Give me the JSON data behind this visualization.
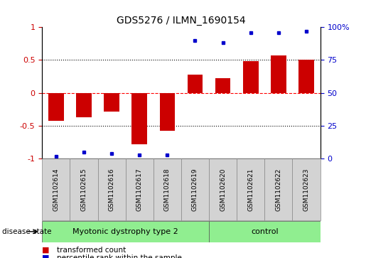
{
  "title": "GDS5276 / ILMN_1690154",
  "samples": [
    "GSM1102614",
    "GSM1102615",
    "GSM1102616",
    "GSM1102617",
    "GSM1102618",
    "GSM1102619",
    "GSM1102620",
    "GSM1102621",
    "GSM1102622",
    "GSM1102623"
  ],
  "transformed_count": [
    -0.42,
    -0.37,
    -0.28,
    -0.78,
    -0.58,
    0.28,
    0.22,
    0.48,
    0.57,
    0.5
  ],
  "percentile_rank": [
    2,
    5,
    4,
    3,
    3,
    90,
    88,
    96,
    96,
    97
  ],
  "bar_color": "#cc0000",
  "dot_color": "#0000cc",
  "ylim_left": [
    -1,
    1
  ],
  "ylim_right": [
    0,
    100
  ],
  "yticks_left": [
    -1,
    -0.5,
    0,
    0.5,
    1
  ],
  "yticks_right": [
    0,
    25,
    50,
    75,
    100
  ],
  "ytick_labels_left": [
    "-1",
    "-0.5",
    "0",
    "0.5",
    "1"
  ],
  "ytick_labels_right": [
    "0",
    "25",
    "50",
    "75",
    "100%"
  ],
  "hlines": [
    -0.5,
    0,
    0.5
  ],
  "hline_styles": [
    "dotted",
    "dashed",
    "dotted"
  ],
  "hline_colors": [
    "black",
    "red",
    "black"
  ],
  "disease_groups": [
    {
      "label": "Myotonic dystrophy type 2",
      "indices": [
        0,
        1,
        2,
        3,
        4,
        5
      ],
      "color": "#90ee90"
    },
    {
      "label": "control",
      "indices": [
        6,
        7,
        8,
        9
      ],
      "color": "#90ee90"
    }
  ],
  "disease_state_label": "disease state",
  "legend_items": [
    {
      "color": "#cc0000",
      "label": "transformed count"
    },
    {
      "color": "#0000cc",
      "label": "percentile rank within the sample"
    }
  ],
  "sample_box_color": "#d3d3d3"
}
